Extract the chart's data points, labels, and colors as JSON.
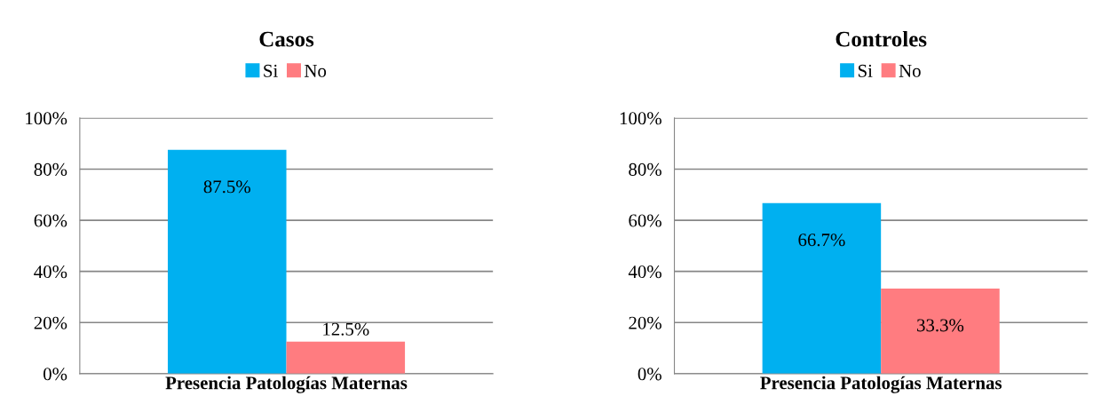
{
  "chart_data": [
    {
      "type": "bar",
      "title": "Casos",
      "categories": [
        "Presencia Patologías Maternas"
      ],
      "series": [
        {
          "name": "Si",
          "color": "#00b0f0",
          "values": [
            87.5
          ],
          "value_labels": [
            "87.5%"
          ]
        },
        {
          "name": "No",
          "color": "#ff7c80",
          "values": [
            12.5
          ],
          "value_labels": [
            "12.5%"
          ]
        }
      ],
      "ylim": [
        0,
        100
      ],
      "yticks": [
        {
          "value": 0,
          "label": "0%"
        },
        {
          "value": 20,
          "label": "20%"
        },
        {
          "value": 40,
          "label": "40%"
        },
        {
          "value": 60,
          "label": "60%"
        },
        {
          "value": 80,
          "label": "80%"
        },
        {
          "value": 100,
          "label": "100%"
        }
      ],
      "grid": "y",
      "legend": "top"
    },
    {
      "type": "bar",
      "title": "Controles",
      "categories": [
        "Presencia Patologías Maternas"
      ],
      "series": [
        {
          "name": "Si",
          "color": "#00b0f0",
          "values": [
            66.7
          ],
          "value_labels": [
            "66.7%"
          ]
        },
        {
          "name": "No",
          "color": "#ff7c80",
          "values": [
            33.3
          ],
          "value_labels": [
            "33.3%"
          ]
        }
      ],
      "ylim": [
        0,
        100
      ],
      "yticks": [
        {
          "value": 0,
          "label": "0%"
        },
        {
          "value": 20,
          "label": "20%"
        },
        {
          "value": 40,
          "label": "40%"
        },
        {
          "value": 60,
          "label": "60%"
        },
        {
          "value": 80,
          "label": "80%"
        },
        {
          "value": 100,
          "label": "100%"
        }
      ],
      "grid": "y",
      "legend": "top"
    }
  ]
}
